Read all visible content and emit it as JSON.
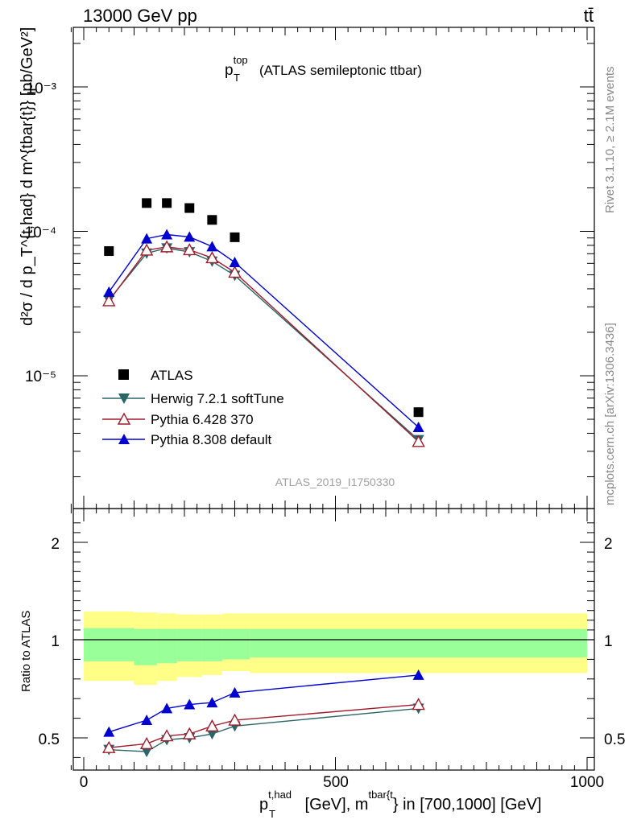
{
  "header": {
    "energy_label": "13000 GeV pp",
    "process_label": "tt̄"
  },
  "side_labels": {
    "rivet": "Rivet 3.1.10, ≥ 2.1M events",
    "mcplots": "mcplots.cern.ch [arXiv:1306.3436]"
  },
  "chart_data": [
    {
      "type": "line",
      "panel": "main",
      "title": "p_T^top (ATLAS semileptonic ttbar)",
      "title_main": "p",
      "title_sub": "T",
      "title_sup": "top",
      "title_rest": "(ATLAS semileptonic ttbar)",
      "ylabel": "d²σ / d p_T^{t,had} d m^{tbar{t}} [pb/GeV²]",
      "yscale": "log",
      "ylim": [
        1.5e-06,
        0.0028
      ],
      "xlim": [
        -40,
        1000
      ],
      "y_tick_labels": [
        "10⁻³",
        "10⁻⁴",
        "10⁻⁵"
      ],
      "analysis_label": "ATLAS_2019_I1750330",
      "series": [
        {
          "name": "ATLAS",
          "color": "#000000",
          "marker": "square",
          "x": [
            50,
            125,
            165,
            210,
            255,
            300,
            665
          ],
          "y": [
            7.3e-05,
            0.000157,
            0.000157,
            0.000145,
            0.00012,
            9.1e-05,
            5.6e-06
          ]
        },
        {
          "name": "Herwig 7.2.1 softTune",
          "color": "#2a6567",
          "marker": "triangle-down",
          "x": [
            50,
            125,
            165,
            210,
            255,
            300,
            665
          ],
          "y": [
            3.35e-05,
            7.05e-05,
            7.65e-05,
            7.2e-05,
            6.2e-05,
            4.95e-05,
            3.6e-06
          ]
        },
        {
          "name": "Pythia 6.428 370",
          "color": "#a01c2c",
          "marker": "triangle-open",
          "x": [
            50,
            125,
            165,
            210,
            255,
            300,
            665
          ],
          "y": [
            3.3e-05,
            7.4e-05,
            7.8e-05,
            7.45e-05,
            6.55e-05,
            5.2e-05,
            3.5e-06
          ]
        },
        {
          "name": "Pythia 8.308 default",
          "color": "#0000d0",
          "marker": "triangle-up",
          "x": [
            50,
            125,
            165,
            210,
            255,
            300,
            665
          ],
          "y": [
            3.8e-05,
            8.9e-05,
            9.5e-05,
            9.15e-05,
            7.85e-05,
            6.1e-05,
            4.4e-06
          ]
        }
      ]
    },
    {
      "type": "line",
      "panel": "ratio",
      "ylabel": "Ratio to ATLAS",
      "xlabel": "p_T^{t,had} [GeV], m^{tbar{t}} in [700,1000] [GeV]",
      "xlabel_parts": {
        "p": "p",
        "sub": "T",
        "sup": "t,had",
        "mid": " [GeV], m",
        "sup2": "tbar{t",
        "tail": "} in [700,1000] [GeV]"
      },
      "ylim": [
        0.35,
        2.35
      ],
      "xlim": [
        -40,
        1000
      ],
      "x_tick_labels": [
        "0",
        "500",
        "1000"
      ],
      "y_tick_labels": [
        "0.5",
        "1",
        "2"
      ],
      "uncertainty_band": {
        "bin_edges": [
          0,
          100,
          145,
          185,
          235,
          275,
          330,
          1000
        ],
        "inner_low": [
          0.89,
          0.87,
          0.88,
          0.89,
          0.89,
          0.9,
          0.91
        ],
        "inner_high": [
          1.12,
          1.11,
          1.11,
          1.11,
          1.11,
          1.11,
          1.11
        ],
        "outer_low": [
          0.79,
          0.77,
          0.79,
          0.81,
          0.82,
          0.84,
          0.83
        ],
        "outer_high": [
          1.29,
          1.28,
          1.27,
          1.26,
          1.26,
          1.27,
          1.27
        ],
        "inner_color": "#99ff99",
        "outer_color": "#ffff88"
      },
      "series": [
        {
          "name": "Herwig 7.2.1 softTune",
          "color": "#2a6567",
          "marker": "triangle-down",
          "x": [
            50,
            125,
            165,
            210,
            255,
            300,
            665
          ],
          "y": [
            0.44,
            0.43,
            0.49,
            0.5,
            0.52,
            0.56,
            0.65
          ]
        },
        {
          "name": "Pythia 6.428 370",
          "color": "#a01c2c",
          "marker": "triangle-open",
          "x": [
            50,
            125,
            165,
            210,
            255,
            300,
            665
          ],
          "y": [
            0.45,
            0.47,
            0.51,
            0.52,
            0.56,
            0.59,
            0.67
          ]
        },
        {
          "name": "Pythia 8.308 default",
          "color": "#0000d0",
          "marker": "triangle-up",
          "x": [
            50,
            125,
            165,
            210,
            255,
            300,
            665
          ],
          "y": [
            0.53,
            0.59,
            0.65,
            0.67,
            0.68,
            0.73,
            0.82
          ]
        }
      ]
    }
  ]
}
